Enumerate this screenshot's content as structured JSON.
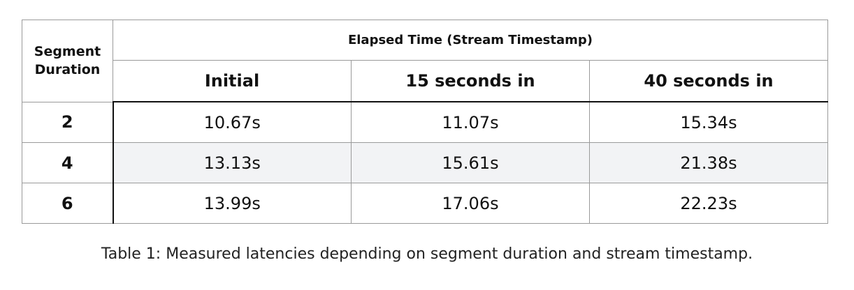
{
  "table": {
    "corner_header": "Segment Duration",
    "group_header": "Elapsed Time (Stream Timestamp)",
    "column_headers": [
      "Initial",
      "15 seconds in",
      "40 seconds in"
    ],
    "rows": [
      {
        "segment": "2",
        "values": [
          "10.67s",
          "11.07s",
          "15.34s"
        ]
      },
      {
        "segment": "4",
        "values": [
          "13.13s",
          "15.61s",
          "21.38s"
        ]
      },
      {
        "segment": "6",
        "values": [
          "13.99s",
          "17.06s",
          "22.23s"
        ]
      }
    ],
    "shaded_row": "4"
  },
  "caption": "Table 1: Measured latencies depending on segment duration and stream timestamp.",
  "colors": {
    "border": "#9a9a9a",
    "shade": "#f2f3f5"
  }
}
